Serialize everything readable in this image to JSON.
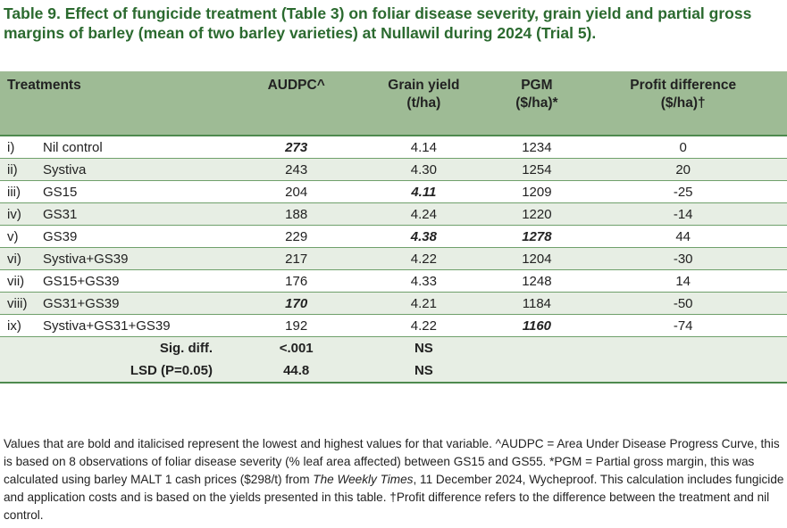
{
  "title": "Table 9. Effect of fungicide treatment (Table 3) on foliar disease severity, grain yield and partial gross margins of barley (mean of two barley varieties) at Nullawil during 2024 (Trial 5).",
  "headers": {
    "treatments": "Treatments",
    "audpc": "AUDPC^",
    "yield1": "Grain yield",
    "yield2": "(t/ha)",
    "pgm1": "PGM",
    "pgm2": "($/ha)*",
    "profit1": "Profit difference",
    "profit2": "($/ha)†"
  },
  "rows": [
    {
      "num": "i)",
      "name": "Nil control",
      "audpc": "273",
      "yield": "4.14",
      "pgm": "1234",
      "profit": "0",
      "bold": [
        "audpc"
      ]
    },
    {
      "num": "ii)",
      "name": "Systiva",
      "audpc": "243",
      "yield": "4.30",
      "pgm": "1254",
      "profit": "20",
      "bold": []
    },
    {
      "num": "iii)",
      "name": "GS15",
      "audpc": "204",
      "yield": "4.11",
      "pgm": "1209",
      "profit": "-25",
      "bold": [
        "yield"
      ]
    },
    {
      "num": "iv)",
      "name": "GS31",
      "audpc": "188",
      "yield": "4.24",
      "pgm": "1220",
      "profit": "-14",
      "bold": []
    },
    {
      "num": "v)",
      "name": "GS39",
      "audpc": "229",
      "yield": "4.38",
      "pgm": "1278",
      "profit": "44",
      "bold": [
        "yield",
        "pgm"
      ]
    },
    {
      "num": "vi)",
      "name": "Systiva+GS39",
      "audpc": "217",
      "yield": "4.22",
      "pgm": "1204",
      "profit": "-30",
      "bold": []
    },
    {
      "num": "vii)",
      "name": "GS15+GS39",
      "audpc": "176",
      "yield": "4.33",
      "pgm": "1248",
      "profit": "14",
      "bold": []
    },
    {
      "num": "viii)",
      "name": "GS31+GS39",
      "audpc": "170",
      "yield": "4.21",
      "pgm": "1184",
      "profit": "-50",
      "bold": [
        "audpc"
      ]
    },
    {
      "num": "ix)",
      "name": "Systiva+GS31+GS39",
      "audpc": "192",
      "yield": "4.22",
      "pgm": "1160",
      "profit": "-74",
      "bold": [
        "pgm"
      ]
    }
  ],
  "stats": [
    {
      "label": "Sig. diff.",
      "audpc": "<.001",
      "yield": "NS"
    },
    {
      "label": "LSD (P=0.05)",
      "audpc": "44.8",
      "yield": "NS"
    }
  ],
  "notes": {
    "part1": "Values that are bold and italicised represent the lowest and highest values for that variable. ^AUDPC = Area Under Disease Progress Curve, this is based on 8 observations of foliar disease severity (% leaf area affected) between GS15 and GS55. *PGM = Partial gross margin, this was calculated using barley MALT 1 cash prices ($298/t) from ",
    "italic": "The Weekly Times",
    "part2": ", 11 December 2024, Wycheproof. This calculation includes fungicide and application costs and is based on the yields presented in this table. †Profit difference refers to the difference between the treatment and nil control."
  }
}
